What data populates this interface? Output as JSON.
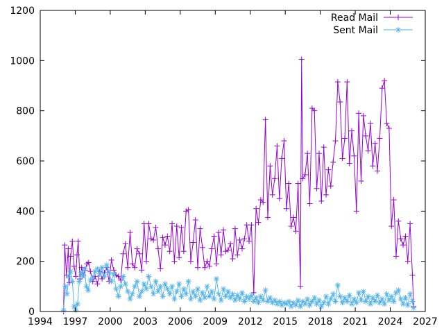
{
  "chart_data": {
    "type": "line",
    "xlim": [
      1994,
      2027
    ],
    "ylim": [
      0,
      1200
    ],
    "x_ticks": [
      1994,
      1997,
      2000,
      2003,
      2006,
      2009,
      2012,
      2015,
      2018,
      2021,
      2024,
      2027
    ],
    "y_ticks": [
      0,
      200,
      400,
      600,
      800,
      1000,
      1200
    ],
    "grid": false,
    "legend_position": "top-right",
    "series": [
      {
        "name": "Read Mail",
        "color": "#9400d3",
        "marker": "plus",
        "values": [
          [
            1996.0,
            0
          ],
          [
            1996.1,
            265
          ],
          [
            1996.25,
            145
          ],
          [
            1996.4,
            250
          ],
          [
            1996.5,
            115
          ],
          [
            1996.6,
            220
          ],
          [
            1996.75,
            280
          ],
          [
            1996.9,
            180
          ],
          [
            1997.05,
            140
          ],
          [
            1997.15,
            225
          ],
          [
            1997.25,
            280
          ],
          [
            1997.4,
            130
          ],
          [
            1997.55,
            175
          ],
          [
            1997.7,
            145
          ],
          [
            1997.85,
            165
          ],
          [
            1998.0,
            190
          ],
          [
            1998.15,
            195
          ],
          [
            1998.3,
            160
          ],
          [
            1998.5,
            120
          ],
          [
            1998.7,
            140
          ],
          [
            1998.9,
            110
          ],
          [
            1999.1,
            160
          ],
          [
            1999.3,
            130
          ],
          [
            1999.5,
            155
          ],
          [
            1999.7,
            175
          ],
          [
            1999.9,
            120
          ],
          [
            2000.1,
            205
          ],
          [
            2000.3,
            165
          ],
          [
            2000.5,
            145
          ],
          [
            2000.7,
            140
          ],
          [
            2000.9,
            125
          ],
          [
            2001.1,
            230
          ],
          [
            2001.3,
            270
          ],
          [
            2001.5,
            175
          ],
          [
            2001.7,
            315
          ],
          [
            2001.9,
            190
          ],
          [
            2002.1,
            175
          ],
          [
            2002.3,
            250
          ],
          [
            2002.5,
            230
          ],
          [
            2002.7,
            165
          ],
          [
            2002.9,
            350
          ],
          [
            2003.1,
            200
          ],
          [
            2003.3,
            350
          ],
          [
            2003.5,
            290
          ],
          [
            2003.7,
            285
          ],
          [
            2003.9,
            335
          ],
          [
            2004.1,
            250
          ],
          [
            2004.3,
            170
          ],
          [
            2004.5,
            295
          ],
          [
            2004.7,
            265
          ],
          [
            2004.9,
            300
          ],
          [
            2005.1,
            240
          ],
          [
            2005.3,
            350
          ],
          [
            2005.5,
            200
          ],
          [
            2005.7,
            340
          ],
          [
            2005.9,
            215
          ],
          [
            2006.1,
            335
          ],
          [
            2006.3,
            240
          ],
          [
            2006.5,
            400
          ],
          [
            2006.7,
            405
          ],
          [
            2006.9,
            200
          ],
          [
            2007.1,
            275
          ],
          [
            2007.3,
            365
          ],
          [
            2007.5,
            175
          ],
          [
            2007.7,
            330
          ],
          [
            2007.9,
            255
          ],
          [
            2008.1,
            175
          ],
          [
            2008.3,
            200
          ],
          [
            2008.5,
            180
          ],
          [
            2008.7,
            250
          ],
          [
            2008.9,
            300
          ],
          [
            2009.1,
            190
          ],
          [
            2009.3,
            315
          ],
          [
            2009.5,
            225
          ],
          [
            2009.7,
            325
          ],
          [
            2009.9,
            240
          ],
          [
            2010.1,
            245
          ],
          [
            2010.3,
            270
          ],
          [
            2010.5,
            210
          ],
          [
            2010.7,
            330
          ],
          [
            2010.9,
            225
          ],
          [
            2011.1,
            285
          ],
          [
            2011.3,
            250
          ],
          [
            2011.5,
            290
          ],
          [
            2011.7,
            345
          ],
          [
            2011.9,
            280
          ],
          [
            2012.1,
            345
          ],
          [
            2012.3,
            75
          ],
          [
            2012.5,
            410
          ],
          [
            2012.7,
            355
          ],
          [
            2012.9,
            445
          ],
          [
            2013.1,
            435
          ],
          [
            2013.3,
            765
          ],
          [
            2013.5,
            375
          ],
          [
            2013.7,
            580
          ],
          [
            2013.9,
            465
          ],
          [
            2014.1,
            530
          ],
          [
            2014.3,
            660
          ],
          [
            2014.5,
            450
          ],
          [
            2014.7,
            610
          ],
          [
            2014.9,
            680
          ],
          [
            2015.1,
            410
          ],
          [
            2015.3,
            510
          ],
          [
            2015.5,
            340
          ],
          [
            2015.7,
            375
          ],
          [
            2015.9,
            320
          ],
          [
            2016.1,
            510
          ],
          [
            2016.3,
            100
          ],
          [
            2016.4,
            1005
          ],
          [
            2016.5,
            530
          ],
          [
            2016.7,
            545
          ],
          [
            2016.9,
            630
          ],
          [
            2017.1,
            430
          ],
          [
            2017.3,
            810
          ],
          [
            2017.5,
            800
          ],
          [
            2017.7,
            490
          ],
          [
            2017.9,
            630
          ],
          [
            2018.1,
            440
          ],
          [
            2018.3,
            655
          ],
          [
            2018.5,
            465
          ],
          [
            2018.7,
            565
          ],
          [
            2018.9,
            500
          ],
          [
            2019.1,
            595
          ],
          [
            2019.3,
            680
          ],
          [
            2019.5,
            915
          ],
          [
            2019.7,
            835
          ],
          [
            2019.9,
            610
          ],
          [
            2020.1,
            690
          ],
          [
            2020.3,
            915
          ],
          [
            2020.5,
            590
          ],
          [
            2020.7,
            720
          ],
          [
            2020.9,
            620
          ],
          [
            2021.1,
            400
          ],
          [
            2021.3,
            790
          ],
          [
            2021.5,
            520
          ],
          [
            2021.7,
            780
          ],
          [
            2021.9,
            700
          ],
          [
            2022.1,
            640
          ],
          [
            2022.3,
            750
          ],
          [
            2022.5,
            580
          ],
          [
            2022.7,
            670
          ],
          [
            2022.9,
            560
          ],
          [
            2023.1,
            690
          ],
          [
            2023.3,
            890
          ],
          [
            2023.5,
            920
          ],
          [
            2023.7,
            750
          ],
          [
            2023.9,
            730
          ],
          [
            2024.1,
            340
          ],
          [
            2024.3,
            445
          ],
          [
            2024.5,
            220
          ],
          [
            2024.7,
            360
          ],
          [
            2024.9,
            290
          ],
          [
            2025.1,
            265
          ],
          [
            2025.3,
            300
          ],
          [
            2025.5,
            200
          ],
          [
            2025.7,
            350
          ],
          [
            2025.9,
            145
          ],
          [
            2026.0,
            20
          ]
        ]
      },
      {
        "name": "Sent Mail",
        "color": "#56b4e9",
        "marker": "star",
        "values": [
          [
            1996.0,
            5
          ],
          [
            1996.15,
            100
          ],
          [
            1996.3,
            70
          ],
          [
            1996.45,
            140
          ],
          [
            1996.6,
            160
          ],
          [
            1996.75,
            120
          ],
          [
            1996.9,
            20
          ],
          [
            1997.05,
            5
          ],
          [
            1997.2,
            30
          ],
          [
            1997.35,
            120
          ],
          [
            1997.5,
            155
          ],
          [
            1997.65,
            140
          ],
          [
            1997.8,
            170
          ],
          [
            1997.95,
            100
          ],
          [
            1998.1,
            85
          ],
          [
            1998.3,
            125
          ],
          [
            1998.5,
            135
          ],
          [
            1998.7,
            160
          ],
          [
            1998.9,
            170
          ],
          [
            1999.1,
            150
          ],
          [
            1999.3,
            175
          ],
          [
            1999.5,
            140
          ],
          [
            1999.7,
            185
          ],
          [
            1999.9,
            155
          ],
          [
            2000.1,
            120
          ],
          [
            2000.3,
            150
          ],
          [
            2000.5,
            90
          ],
          [
            2000.7,
            60
          ],
          [
            2000.9,
            100
          ],
          [
            2001.1,
            140
          ],
          [
            2001.3,
            110
          ],
          [
            2001.5,
            80
          ],
          [
            2001.7,
            50
          ],
          [
            2001.9,
            70
          ],
          [
            2002.1,
            100
          ],
          [
            2002.3,
            120
          ],
          [
            2002.5,
            60
          ],
          [
            2002.7,
            80
          ],
          [
            2002.9,
            110
          ],
          [
            2003.1,
            90
          ],
          [
            2003.3,
            140
          ],
          [
            2003.5,
            100
          ],
          [
            2003.7,
            70
          ],
          [
            2003.9,
            120
          ],
          [
            2004.1,
            80
          ],
          [
            2004.3,
            100
          ],
          [
            2004.5,
            60
          ],
          [
            2004.7,
            110
          ],
          [
            2004.9,
            90
          ],
          [
            2005.1,
            70
          ],
          [
            2005.3,
            100
          ],
          [
            2005.5,
            50
          ],
          [
            2005.7,
            80
          ],
          [
            2005.9,
            110
          ],
          [
            2006.1,
            60
          ],
          [
            2006.3,
            90
          ],
          [
            2006.5,
            70
          ],
          [
            2006.7,
            120
          ],
          [
            2006.9,
            50
          ],
          [
            2007.1,
            80
          ],
          [
            2007.3,
            60
          ],
          [
            2007.5,
            90
          ],
          [
            2007.7,
            45
          ],
          [
            2007.9,
            75
          ],
          [
            2008.1,
            55
          ],
          [
            2008.3,
            100
          ],
          [
            2008.5,
            60
          ],
          [
            2008.7,
            80
          ],
          [
            2008.9,
            50
          ],
          [
            2009.1,
            130
          ],
          [
            2009.3,
            70
          ],
          [
            2009.5,
            45
          ],
          [
            2009.7,
            90
          ],
          [
            2009.9,
            60
          ],
          [
            2010.1,
            80
          ],
          [
            2010.3,
            55
          ],
          [
            2010.5,
            70
          ],
          [
            2010.7,
            45
          ],
          [
            2010.9,
            65
          ],
          [
            2011.1,
            50
          ],
          [
            2011.3,
            75
          ],
          [
            2011.5,
            40
          ],
          [
            2011.7,
            60
          ],
          [
            2011.9,
            50
          ],
          [
            2012.1,
            65
          ],
          [
            2012.3,
            40
          ],
          [
            2012.5,
            55
          ],
          [
            2012.7,
            35
          ],
          [
            2012.9,
            60
          ],
          [
            2013.1,
            45
          ],
          [
            2013.3,
            85
          ],
          [
            2013.5,
            40
          ],
          [
            2013.7,
            55
          ],
          [
            2013.9,
            35
          ],
          [
            2014.1,
            45
          ],
          [
            2014.3,
            30
          ],
          [
            2014.5,
            40
          ],
          [
            2014.7,
            25
          ],
          [
            2014.9,
            35
          ],
          [
            2015.1,
            30
          ],
          [
            2015.3,
            40
          ],
          [
            2015.5,
            20
          ],
          [
            2015.7,
            35
          ],
          [
            2015.9,
            25
          ],
          [
            2016.1,
            45
          ],
          [
            2016.3,
            20
          ],
          [
            2016.5,
            40
          ],
          [
            2016.7,
            30
          ],
          [
            2016.9,
            50
          ],
          [
            2017.1,
            25
          ],
          [
            2017.3,
            40
          ],
          [
            2017.5,
            55
          ],
          [
            2017.7,
            30
          ],
          [
            2017.9,
            45
          ],
          [
            2018.1,
            20
          ],
          [
            2018.3,
            35
          ],
          [
            2018.5,
            60
          ],
          [
            2018.7,
            30
          ],
          [
            2018.9,
            50
          ],
          [
            2019.1,
            70
          ],
          [
            2019.3,
            40
          ],
          [
            2019.5,
            105
          ],
          [
            2019.7,
            60
          ],
          [
            2019.9,
            35
          ],
          [
            2020.1,
            55
          ],
          [
            2020.3,
            40
          ],
          [
            2020.5,
            65
          ],
          [
            2020.7,
            30
          ],
          [
            2020.9,
            50
          ],
          [
            2021.1,
            35
          ],
          [
            2021.3,
            75
          ],
          [
            2021.5,
            45
          ],
          [
            2021.7,
            80
          ],
          [
            2021.9,
            40
          ],
          [
            2022.1,
            60
          ],
          [
            2022.3,
            30
          ],
          [
            2022.5,
            55
          ],
          [
            2022.7,
            40
          ],
          [
            2022.9,
            65
          ],
          [
            2023.1,
            35
          ],
          [
            2023.3,
            50
          ],
          [
            2023.5,
            30
          ],
          [
            2023.7,
            70
          ],
          [
            2023.9,
            45
          ],
          [
            2024.1,
            60
          ],
          [
            2024.3,
            40
          ],
          [
            2024.5,
            75
          ],
          [
            2024.7,
            85
          ],
          [
            2024.9,
            50
          ],
          [
            2025.1,
            30
          ],
          [
            2025.3,
            55
          ],
          [
            2025.5,
            25
          ],
          [
            2025.7,
            70
          ],
          [
            2025.9,
            40
          ],
          [
            2026.0,
            15
          ]
        ]
      }
    ]
  }
}
